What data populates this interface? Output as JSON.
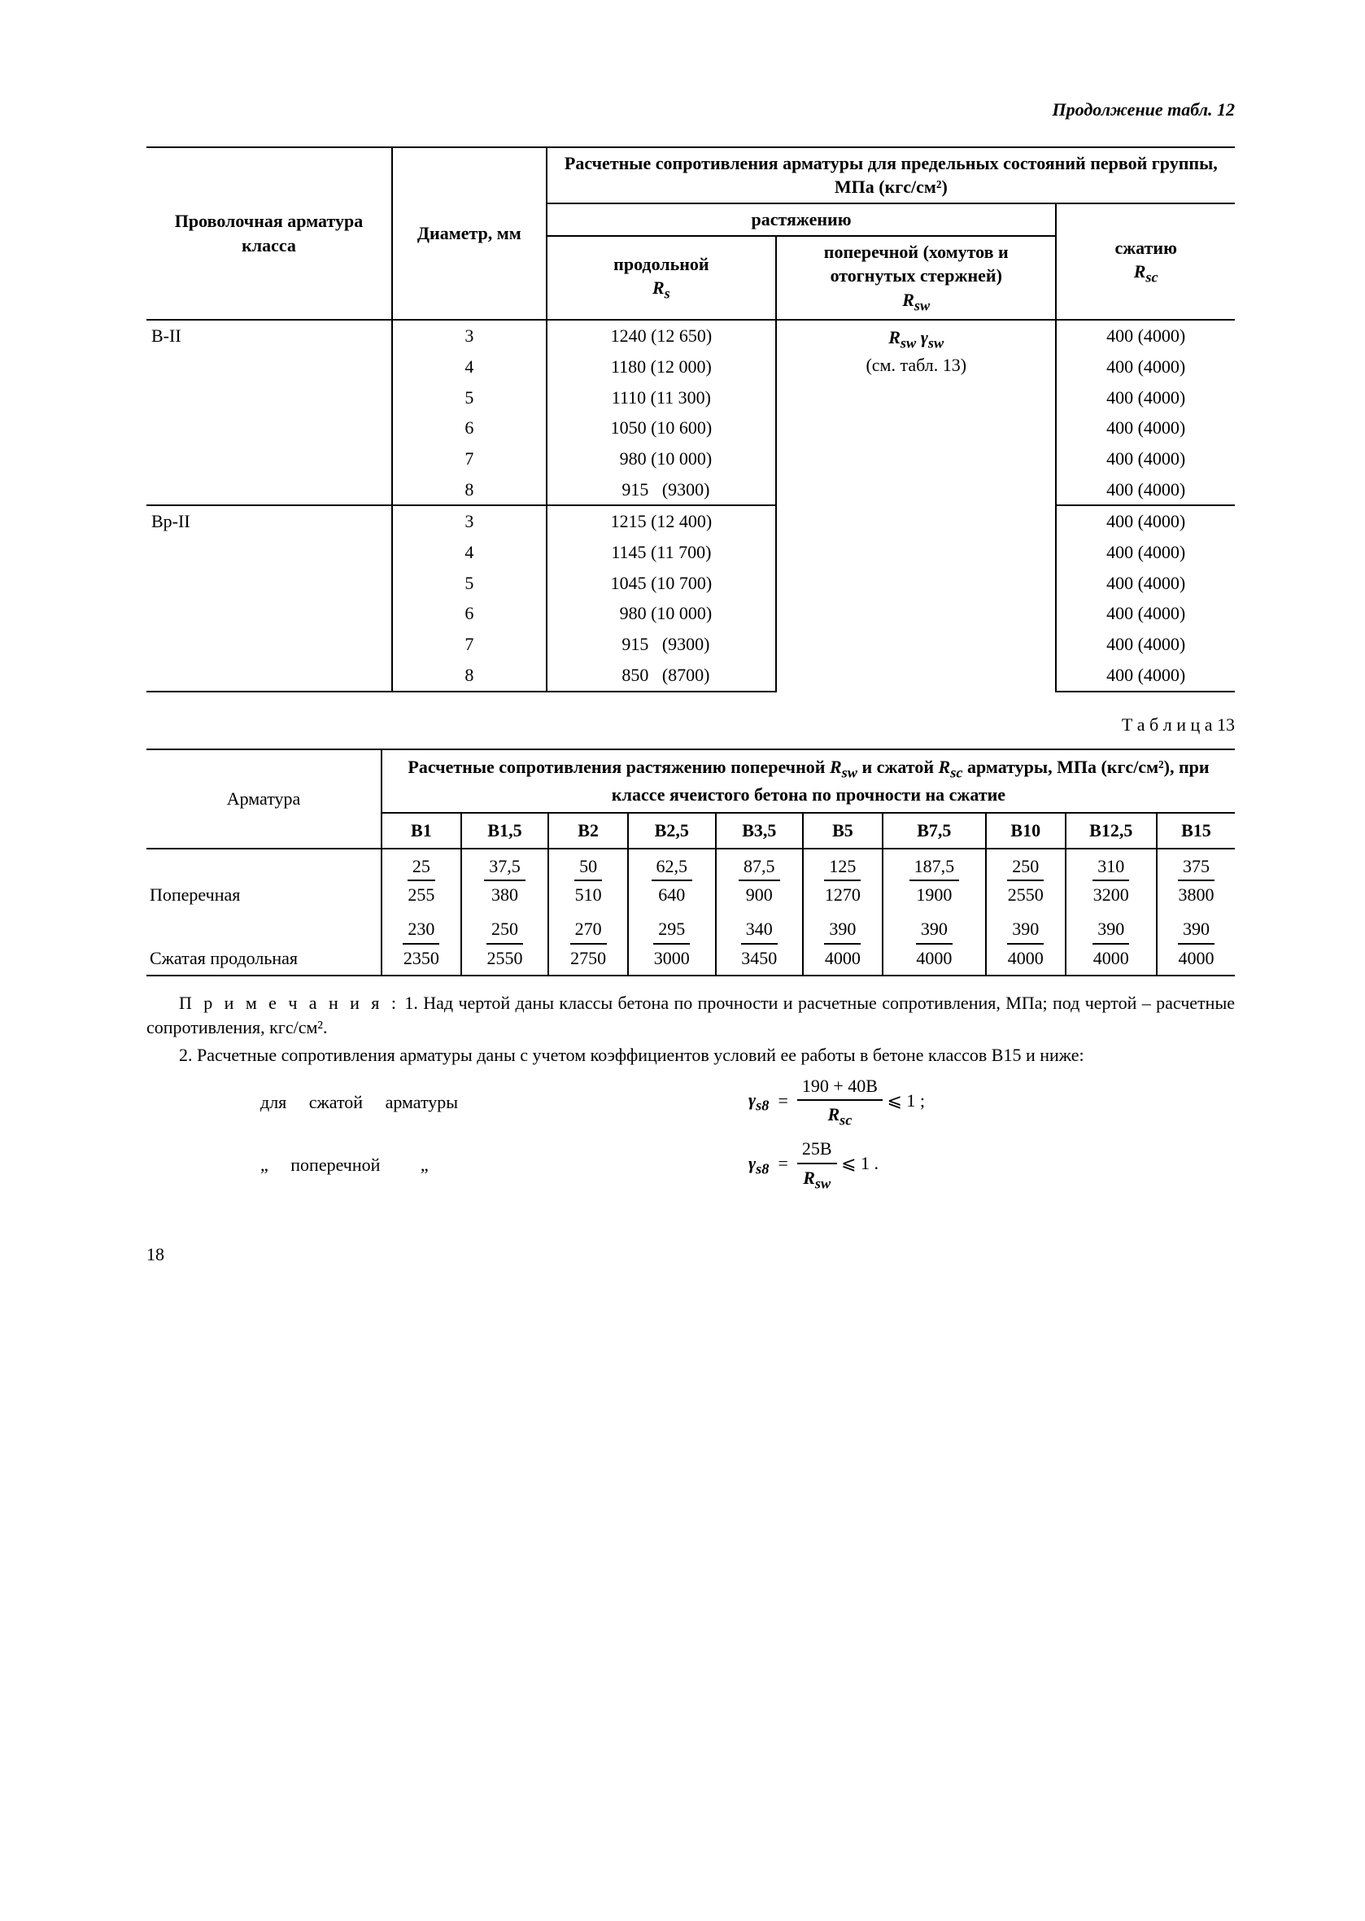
{
  "continuation_label": "Продолжение табл. 12",
  "table12": {
    "col1": "Проволочная арматура класса",
    "col2": "Диаметр, мм",
    "group_header": "Расчетные сопротивления арматуры для предельных состояний первой группы, МПа (кгс/см²)",
    "tension_header": "растяжению",
    "col3_line1": "продольной",
    "col3_sym": "R",
    "col3_sub": "s",
    "col4_line1": "поперечной (хомутов и отогнутых стержней)",
    "col4_sym": "R",
    "col4_sub": "sw",
    "col5_line1": "сжатию",
    "col5_sym": "R",
    "col5_sub": "sc",
    "groups": [
      {
        "name": "В-II",
        "rsw_note_l1": "Rₛw γₛw",
        "rsw_note_l2": "(см. табл. 13)",
        "rows": [
          {
            "d": "3",
            "rs": "1240 (12 650)",
            "rsc": "400 (4000)"
          },
          {
            "d": "4",
            "rs": "1180 (12 000)",
            "rsc": "400 (4000)"
          },
          {
            "d": "5",
            "rs": "1110 (11 300)",
            "rsc": "400 (4000)"
          },
          {
            "d": "6",
            "rs": "1050 (10 600)",
            "rsc": "400 (4000)"
          },
          {
            "d": "7",
            "rs": "  980 (10 000)",
            "rsc": "400 (4000)"
          },
          {
            "d": "8",
            "rs": "  915   (9300)",
            "rsc": "400 (4000)"
          }
        ]
      },
      {
        "name": "Вр-II",
        "rows": [
          {
            "d": "3",
            "rs": "1215 (12 400)",
            "rsc": "400 (4000)"
          },
          {
            "d": "4",
            "rs": "1145 (11 700)",
            "rsc": "400 (4000)"
          },
          {
            "d": "5",
            "rs": "1045 (10 700)",
            "rsc": "400 (4000)"
          },
          {
            "d": "6",
            "rs": "  980 (10 000)",
            "rsc": "400 (4000)"
          },
          {
            "d": "7",
            "rs": "  915   (9300)",
            "rsc": "400 (4000)"
          },
          {
            "d": "8",
            "rs": "  850   (8700)",
            "rsc": "400 (4000)"
          }
        ]
      }
    ]
  },
  "table13_label": "Т а б л и ц а  13",
  "table13": {
    "rowhead": "Арматура",
    "header_line1": "Расчетные сопротивления растяжению поперечной ",
    "header_sym1": "R",
    "header_sub1": "sw",
    "header_mid": " и сжатой ",
    "header_sym2": "R",
    "header_sub2": "sc",
    "header_line2": " арматуры, МПа (кгс/см²), при классе ячеистого бетона по прочности на сжатие",
    "cols": [
      "В1",
      "В1,5",
      "В2",
      "В2,5",
      "В3,5",
      "В5",
      "В7,5",
      "В10",
      "В12,5",
      "В15"
    ],
    "rows": [
      {
        "label": "Поперечная",
        "num": [
          "25",
          "37,5",
          "50",
          "62,5",
          "87,5",
          "125",
          "187,5",
          "250",
          "310",
          "375"
        ],
        "den": [
          "255",
          "380",
          "510",
          "640",
          "900",
          "1270",
          "1900",
          "2550",
          "3200",
          "3800"
        ]
      },
      {
        "label": "Сжатая продольная",
        "num": [
          "230",
          "250",
          "270",
          "295",
          "340",
          "390",
          "390",
          "390",
          "390",
          "390"
        ],
        "den": [
          "2350",
          "2550",
          "2750",
          "3000",
          "3450",
          "4000",
          "4000",
          "4000",
          "4000",
          "4000"
        ]
      }
    ]
  },
  "notes": {
    "lead": "П р и м е ч а н и я :",
    "n1": " 1. Над чертой даны классы бетона по прочности и расчетные сопротивления, МПа; под чертой – расчетные сопротивления, кгс/см².",
    "n2": "2. Расчетные сопротивления арматуры даны с учетом коэффициентов условий ее работы в бетоне классов В15 и ниже:",
    "f1_lhs_1": "для",
    "f1_lhs_2": "сжатой",
    "f1_lhs_3": "арматуры",
    "f1_gamma": "γ",
    "f1_gamma_sub": "s8",
    "f1_num": "190 + 40В",
    "f1_den_sym": "R",
    "f1_den_sub": "sc",
    "f1_tail": " ⩽ 1 ;",
    "f2_lhs_2": "поперечной",
    "f2_num": "25В",
    "f2_den_sym": "R",
    "f2_den_sub": "sw",
    "f2_tail": " ⩽ 1 ."
  },
  "page_number": "18"
}
